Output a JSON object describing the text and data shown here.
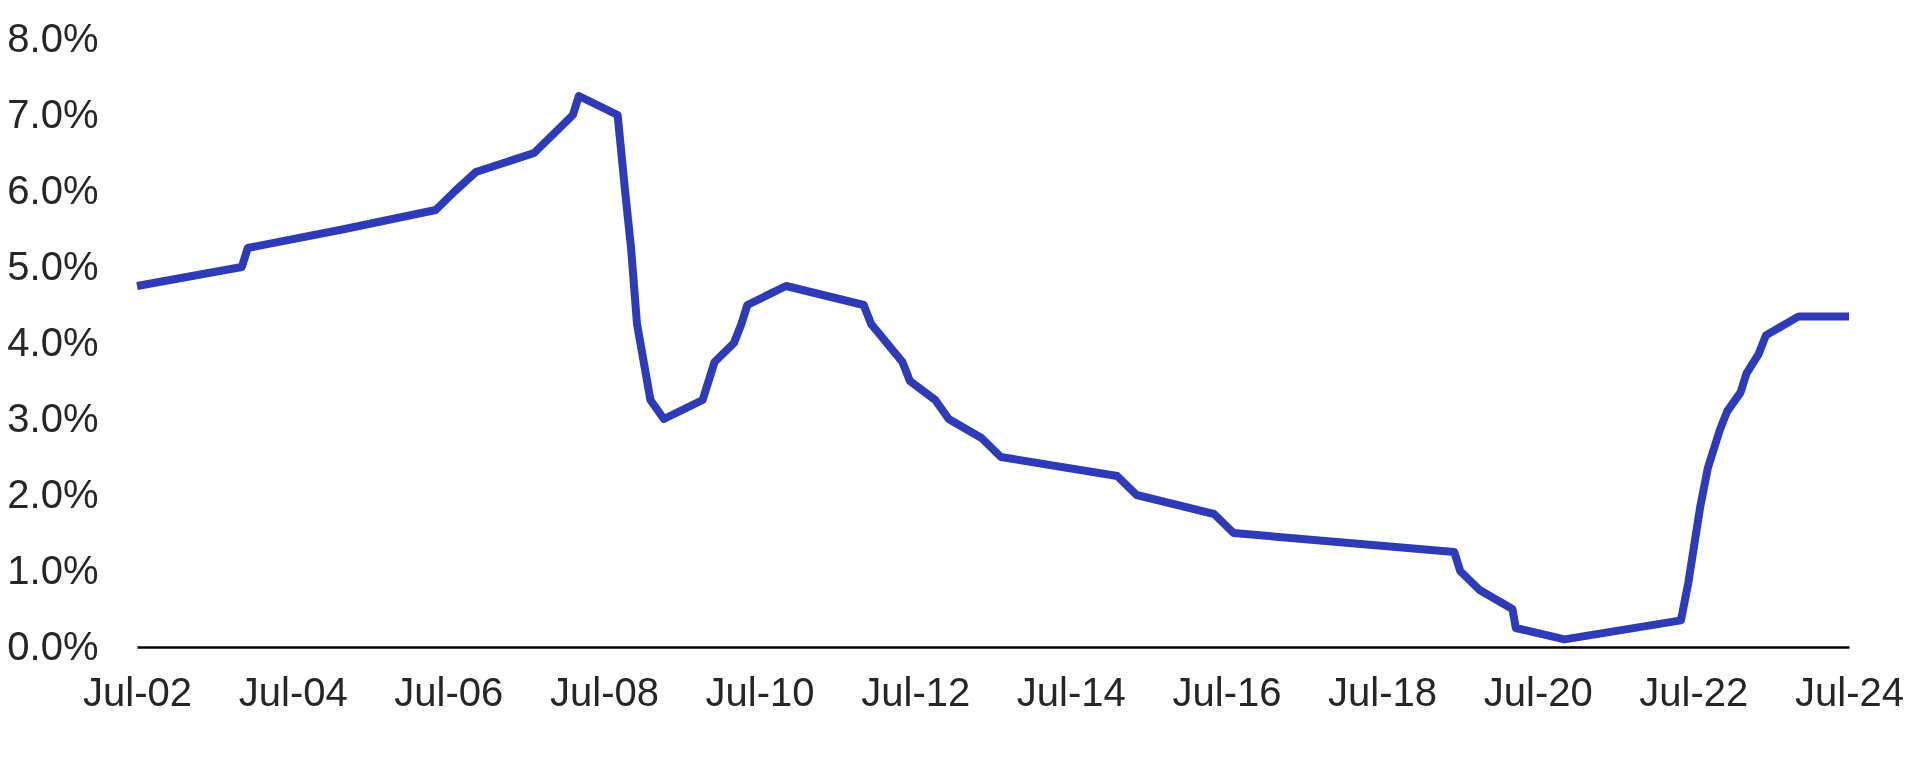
{
  "chart_data": {
    "type": "line",
    "x": [
      "2002-07-01",
      "2003-11-05",
      "2003-12-03",
      "2005-03-02",
      "2006-05-03",
      "2006-08-02",
      "2006-11-08",
      "2007-08-08",
      "2007-11-07",
      "2008-02-06",
      "2008-03-05",
      "2008-09-03",
      "2008-10-08",
      "2008-11-05",
      "2008-12-03",
      "2009-02-04",
      "2009-04-08",
      "2009-10-07",
      "2009-11-04",
      "2009-12-02",
      "2010-03-03",
      "2010-04-07",
      "2010-05-05",
      "2010-11-03",
      "2011-11-02",
      "2011-12-07",
      "2012-05-02",
      "2012-06-06",
      "2012-10-03",
      "2012-12-05",
      "2013-05-08",
      "2013-08-07",
      "2015-02-04",
      "2015-05-06",
      "2016-05-04",
      "2016-08-03",
      "2019-06-05",
      "2019-07-03",
      "2019-10-02",
      "2020-03-04",
      "2020-03-20",
      "2020-11-04",
      "2022-05-04",
      "2022-06-08",
      "2022-07-06",
      "2022-08-03",
      "2022-09-07",
      "2022-10-05",
      "2022-11-02",
      "2022-12-07",
      "2023-02-08",
      "2023-03-08",
      "2023-05-03",
      "2023-06-07",
      "2023-11-08",
      "2024-07-01"
    ],
    "series": [
      {
        "color": "#2e3bb8",
        "values": [
          4.75,
          5.0,
          5.25,
          5.5,
          5.75,
          6.0,
          6.25,
          6.5,
          6.75,
          7.0,
          7.25,
          7.0,
          6.0,
          5.25,
          4.25,
          3.25,
          3.0,
          3.25,
          3.5,
          3.75,
          4.0,
          4.25,
          4.5,
          4.75,
          4.5,
          4.25,
          3.75,
          3.5,
          3.25,
          3.0,
          2.75,
          2.5,
          2.25,
          2.0,
          1.75,
          1.5,
          1.25,
          1.0,
          0.75,
          0.5,
          0.25,
          0.1,
          0.35,
          0.85,
          1.35,
          1.85,
          2.35,
          2.6,
          2.85,
          3.1,
          3.35,
          3.6,
          3.85,
          4.1,
          4.35,
          4.35
        ]
      }
    ],
    "xlim": [
      "2002-07-01",
      "2024-07-01"
    ],
    "xticks": [
      {
        "value": "2002-07-01",
        "label": "Jul-02"
      },
      {
        "value": "2004-07-01",
        "label": "Jul-04"
      },
      {
        "value": "2006-07-01",
        "label": "Jul-06"
      },
      {
        "value": "2008-07-01",
        "label": "Jul-08"
      },
      {
        "value": "2010-07-01",
        "label": "Jul-10"
      },
      {
        "value": "2012-07-01",
        "label": "Jul-12"
      },
      {
        "value": "2014-07-01",
        "label": "Jul-14"
      },
      {
        "value": "2016-07-01",
        "label": "Jul-16"
      },
      {
        "value": "2018-07-01",
        "label": "Jul-18"
      },
      {
        "value": "2020-07-01",
        "label": "Jul-20"
      },
      {
        "value": "2022-07-01",
        "label": "Jul-22"
      },
      {
        "value": "2024-07-01",
        "label": "Jul-24"
      }
    ],
    "ylim": [
      0,
      8
    ],
    "yticks": [
      {
        "value": 0,
        "label": "0.0%"
      },
      {
        "value": 1,
        "label": "1.0%"
      },
      {
        "value": 2,
        "label": "2.0%"
      },
      {
        "value": 3,
        "label": "3.0%"
      },
      {
        "value": 4,
        "label": "4.0%"
      },
      {
        "value": 5,
        "label": "5.0%"
      },
      {
        "value": 6,
        "label": "6.0%"
      },
      {
        "value": 7,
        "label": "7.0%"
      },
      {
        "value": 8,
        "label": "8.0%"
      }
    ],
    "line_style": "solid"
  }
}
